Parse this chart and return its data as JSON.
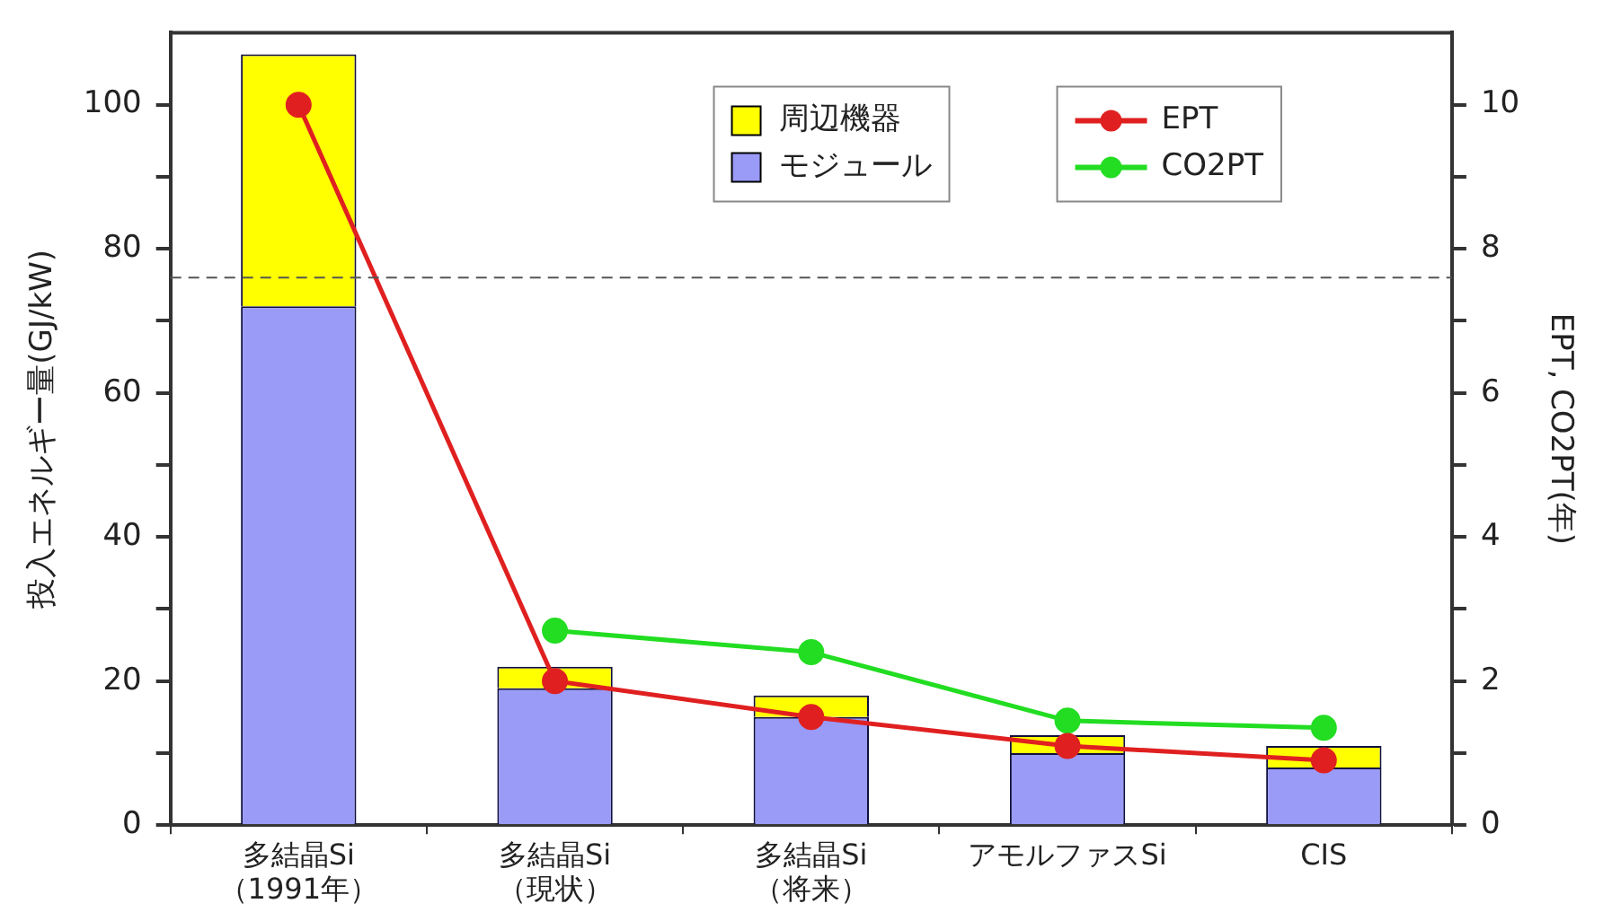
{
  "chart_data": {
    "type": "bar",
    "stacked": true,
    "xlabel": null,
    "ylabel": "投入エネルギー量(GJ/kW)",
    "y2label": "EPT, CO2PT(年)",
    "categories": [
      "多結晶Si\n（1991年）",
      "多結晶Si\n（現状）",
      "多結晶Si\n（将来）",
      "アモルファスSi",
      "CIS"
    ],
    "series": [
      {
        "name": "モジュール",
        "color": "#9a9af7",
        "values": [
          72,
          19,
          15,
          10,
          8
        ]
      },
      {
        "name": "周辺機器",
        "color": "#ffff00",
        "values": [
          35,
          3,
          3,
          2.5,
          3
        ]
      },
      {
        "name": "EPT",
        "type": "line",
        "axis": "y2",
        "color": "#e02020",
        "values": [
          10,
          2.0,
          1.5,
          1.1,
          0.9
        ]
      },
      {
        "name": "CO2PT",
        "type": "line",
        "axis": "y2",
        "color": "#22dd22",
        "values": [
          null,
          2.7,
          2.4,
          1.45,
          1.35
        ]
      }
    ],
    "ylim": [
      0,
      110
    ],
    "yticks": [
      0,
      {
        "value": 10,
        "label": null
      },
      20,
      {
        "value": 30,
        "label": null
      },
      40,
      {
        "value": 50,
        "label": null
      },
      60,
      {
        "value": 70,
        "label": null
      },
      80,
      {
        "value": 90,
        "label": null
      },
      100
    ],
    "y2lim": [
      0,
      11
    ],
    "y2ticks": [
      0,
      {
        "value": 1,
        "label": null
      },
      2,
      {
        "value": 3,
        "label": null
      },
      4,
      {
        "value": 5,
        "label": null
      },
      6,
      {
        "value": 7,
        "label": null
      },
      8,
      {
        "value": 9,
        "label": null
      },
      10
    ],
    "ref_lines": [
      {
        "axis": "y",
        "value": 76,
        "line_style": "dashed",
        "color": "#555555"
      }
    ],
    "grid": false,
    "legend": "top right",
    "marker": "circle",
    "line_style": "solid"
  }
}
